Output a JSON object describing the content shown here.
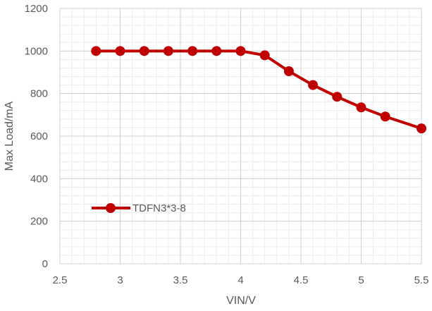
{
  "chart_data": {
    "type": "line",
    "xlabel": "VIN/V",
    "ylabel": "Max Load/mA",
    "xlim": [
      2.5,
      5.5
    ],
    "ylim": [
      0,
      1200
    ],
    "x_major_ticks": [
      2.5,
      3,
      3.5,
      4,
      4.5,
      5,
      5.5
    ],
    "x_tick_labels": [
      "2.5",
      "3",
      "3.5",
      "4",
      "4.5",
      "5",
      "5.5"
    ],
    "y_major_ticks": [
      0,
      200,
      400,
      600,
      800,
      1000,
      1200
    ],
    "y_tick_labels": [
      "0",
      "200",
      "400",
      "600",
      "800",
      "1000",
      "1200"
    ],
    "x_minor_step": 0.1,
    "y_minor_step": 40,
    "grid": "major and minor",
    "legend_placement": "inside-lower-left",
    "series": [
      {
        "name": "TDFN3*3-8",
        "color": "#C00000",
        "marker": "circle",
        "x": [
          2.8,
          3.0,
          3.2,
          3.4,
          3.6,
          3.8,
          4.0,
          4.2,
          4.4,
          4.6,
          4.8,
          5.0,
          5.2,
          5.5
        ],
        "y": [
          1000,
          1000,
          1000,
          1000,
          1000,
          1000,
          1000,
          980,
          905,
          840,
          785,
          735,
          692,
          636
        ]
      }
    ]
  }
}
